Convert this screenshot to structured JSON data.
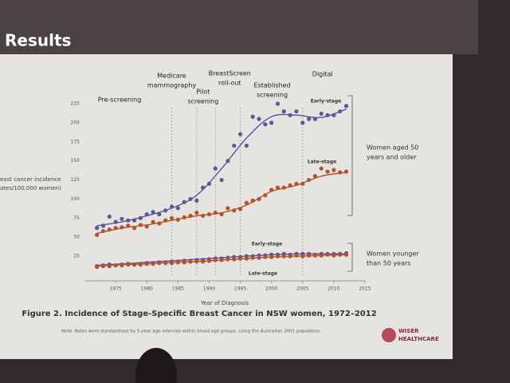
{
  "slide_title": "Results",
  "chart_data": {
    "type": "scatter",
    "caption": "Figure 2. Incidence of Stage-Specific Breast Cancer in NSW women, 1972–2012",
    "note": "Note. Rates were standardised by 5-year age intervals within broad age groups, using the Australian 2001 population.",
    "x_label": "Year of Diagnosis",
    "y_label": [
      "east cancer incidence",
      "ates/100,000 women)"
    ],
    "xlim": [
      1970,
      2015
    ],
    "xticks": [
      1975,
      1980,
      1985,
      1990,
      1995,
      2000,
      2005,
      2010,
      2015
    ],
    "ylim": [
      0,
      225
    ],
    "yticks": [
      25,
      50,
      75,
      100,
      125,
      150,
      175,
      200,
      225
    ],
    "x": [
      1972,
      1973,
      1974,
      1975,
      1976,
      1977,
      1978,
      1979,
      1980,
      1981,
      1982,
      1983,
      1984,
      1985,
      1986,
      1987,
      1988,
      1989,
      1990,
      1991,
      1992,
      1993,
      1994,
      1995,
      1996,
      1997,
      1998,
      1999,
      2000,
      2001,
      2002,
      2003,
      2004,
      2005,
      2006,
      2007,
      2008,
      2009,
      2010,
      2011,
      2012
    ],
    "fit_x": [
      1972,
      1976,
      1980,
      1984,
      1988,
      1992,
      1996,
      2000,
      2004,
      2008,
      2012
    ],
    "series": [
      {
        "name": "Early-stage",
        "color": "#5f5598",
        "values": [
          62,
          65,
          77,
          70,
          74,
          72,
          72,
          75,
          80,
          83,
          80,
          85,
          90,
          88,
          96,
          100,
          98,
          115,
          120,
          140,
          125,
          150,
          170,
          185,
          170,
          208,
          205,
          198,
          200,
          225,
          215,
          210,
          215,
          200,
          205,
          205,
          212,
          210,
          210,
          215,
          222
        ],
        "fit": [
          65,
          70,
          78,
          88,
          105,
          140,
          180,
          208,
          210,
          207,
          218
        ]
      },
      {
        "name": "Late-stage",
        "color": "#b4522c",
        "values": [
          53,
          58,
          60,
          62,
          63,
          65,
          62,
          66,
          64,
          70,
          68,
          72,
          75,
          73,
          76,
          78,
          82,
          78,
          80,
          82,
          80,
          88,
          85,
          87,
          95,
          98,
          100,
          105,
          112,
          115,
          115,
          118,
          120,
          120,
          125,
          130,
          140,
          136,
          138,
          135,
          136
        ],
        "fit": [
          55,
          62,
          66,
          72,
          78,
          82,
          92,
          110,
          118,
          130,
          135
        ]
      },
      {
        "name": "Early-stage",
        "color": "#5f5598",
        "values": [
          12,
          13,
          14,
          13,
          14,
          15,
          14,
          15,
          16,
          16,
          17,
          17,
          18,
          18,
          19,
          19,
          20,
          20,
          21,
          22,
          22,
          23,
          24,
          24,
          25,
          25,
          26,
          26,
          27,
          27,
          28,
          27,
          28,
          28,
          28,
          27,
          28,
          28,
          28,
          28,
          29
        ],
        "fit": [
          13,
          15,
          17,
          19,
          21,
          23,
          25,
          27,
          28,
          28,
          28
        ]
      },
      {
        "name": "Late-stage",
        "color": "#b4522c",
        "values": [
          11,
          12,
          12,
          13,
          13,
          14,
          14,
          14,
          15,
          15,
          16,
          16,
          16,
          17,
          17,
          18,
          18,
          18,
          19,
          20,
          20,
          21,
          21,
          22,
          22,
          23,
          23,
          24,
          24,
          25,
          25,
          25,
          26,
          25,
          26,
          26,
          26,
          27,
          26,
          27,
          27
        ],
        "fit": [
          12,
          14,
          15,
          17,
          18,
          20,
          22,
          24,
          25,
          26,
          27
        ]
      }
    ],
    "events": [
      {
        "x": 1984,
        "label": [
          "Medicare",
          "mammography"
        ]
      },
      {
        "x": 1988,
        "label": [
          "Pilot",
          "screening"
        ]
      },
      {
        "x": 1991,
        "label": [
          "BreastScreen",
          "roll-out"
        ]
      },
      {
        "x": 1995,
        "label": [
          "Established",
          "screening"
        ]
      },
      {
        "x": 2005,
        "label": [
          "Digital"
        ]
      }
    ],
    "period_label": "Pre-screening",
    "groups": [
      [
        "Women aged 50",
        "years and older"
      ],
      [
        "Women younger",
        "than 50 years"
      ]
    ]
  },
  "logo": [
    "WISER",
    "HEALTHCARE"
  ]
}
